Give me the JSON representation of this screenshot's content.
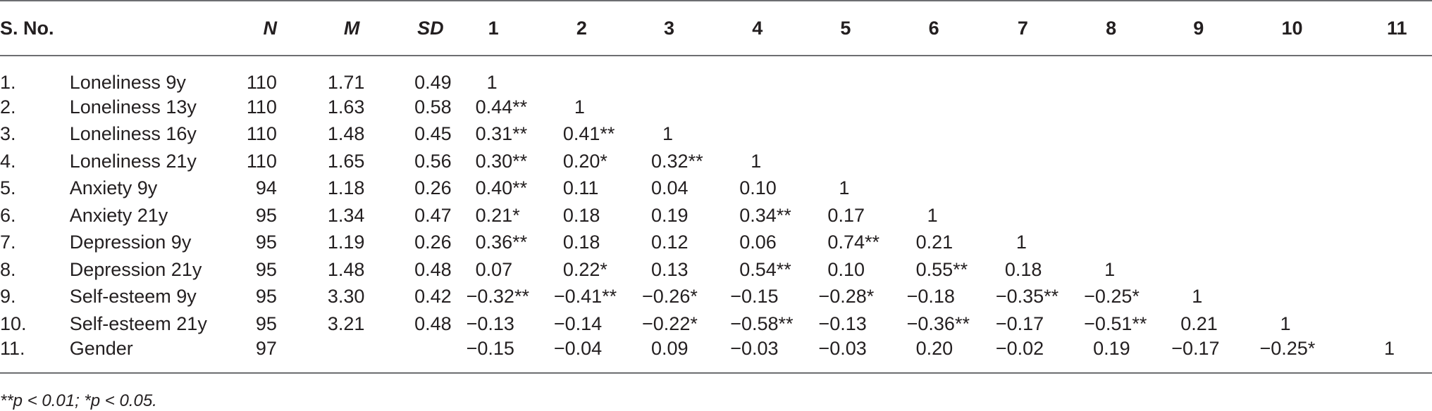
{
  "headers": {
    "sno": "S. No.",
    "n": "N",
    "m": "M",
    "sd": "SD",
    "cols": [
      "1",
      "2",
      "3",
      "4",
      "5",
      "6",
      "7",
      "8",
      "9",
      "10",
      "11"
    ]
  },
  "rows": [
    {
      "sno": "1.",
      "variable": "Loneliness 9y",
      "n": "110",
      "m": "1.71",
      "sd": "0.49",
      "corr": [
        "1",
        "",
        "",
        "",
        "",
        "",
        "",
        "",
        "",
        "",
        ""
      ]
    },
    {
      "sno": "2.",
      "variable": "Loneliness 13y",
      "n": "110",
      "m": "1.63",
      "sd": "0.58",
      "corr": [
        "0.44**",
        "1",
        "",
        "",
        "",
        "",
        "",
        "",
        "",
        "",
        ""
      ]
    },
    {
      "sno": "3.",
      "variable": "Loneliness 16y",
      "n": "110",
      "m": "1.48",
      "sd": "0.45",
      "corr": [
        "0.31**",
        "0.41**",
        "1",
        "",
        "",
        "",
        "",
        "",
        "",
        "",
        ""
      ]
    },
    {
      "sno": "4.",
      "variable": "Loneliness 21y",
      "n": "110",
      "m": "1.65",
      "sd": "0.56",
      "corr": [
        "0.30**",
        "0.20*",
        "0.32**",
        "1",
        "",
        "",
        "",
        "",
        "",
        "",
        ""
      ]
    },
    {
      "sno": "5.",
      "variable": "Anxiety 9y",
      "n": "94",
      "m": "1.18",
      "sd": "0.26",
      "corr": [
        "0.40**",
        "0.11",
        "0.04",
        "0.10",
        "1",
        "",
        "",
        "",
        "",
        "",
        ""
      ]
    },
    {
      "sno": "6.",
      "variable": "Anxiety 21y",
      "n": "95",
      "m": "1.34",
      "sd": "0.47",
      "corr": [
        "0.21*",
        "0.18",
        "0.19",
        "0.34**",
        "0.17",
        "1",
        "",
        "",
        "",
        "",
        ""
      ]
    },
    {
      "sno": "7.",
      "variable": "Depression 9y",
      "n": "95",
      "m": "1.19",
      "sd": "0.26",
      "corr": [
        "0.36**",
        "0.18",
        "0.12",
        "0.06",
        "0.74**",
        "0.21",
        "1",
        "",
        "",
        "",
        ""
      ]
    },
    {
      "sno": "8.",
      "variable": "Depression 21y",
      "n": "95",
      "m": "1.48",
      "sd": "0.48",
      "corr": [
        "0.07",
        "0.22*",
        "0.13",
        "0.54**",
        "0.10",
        "0.55**",
        "0.18",
        "1",
        "",
        "",
        ""
      ]
    },
    {
      "sno": "9.",
      "variable": "Self-esteem 9y",
      "n": "95",
      "m": "3.30",
      "sd": "0.42",
      "corr": [
        "−0.32**",
        "−0.41**",
        "−0.26*",
        "−0.15",
        "−0.28*",
        "−0.18",
        "−0.35**",
        "−0.25*",
        "1",
        "",
        ""
      ]
    },
    {
      "sno": "10.",
      "variable": "Self-esteem 21y",
      "n": "95",
      "m": "3.21",
      "sd": "0.48",
      "corr": [
        "−0.13",
        "−0.14",
        "−0.22*",
        "−0.58**",
        "−0.13",
        "−0.36**",
        "−0.17",
        "−0.51**",
        "0.21",
        "1",
        ""
      ]
    },
    {
      "sno": "11.",
      "variable": "Gender",
      "n": "97",
      "m": "",
      "sd": "",
      "corr": [
        "−0.15",
        "−0.04",
        "0.09",
        "−0.03",
        "−0.03",
        "0.20",
        "−0.02",
        "0.19",
        "−0.17",
        "−0.25*",
        "1"
      ]
    }
  ],
  "footnote": "**p < 0.01; *p < 0.05."
}
